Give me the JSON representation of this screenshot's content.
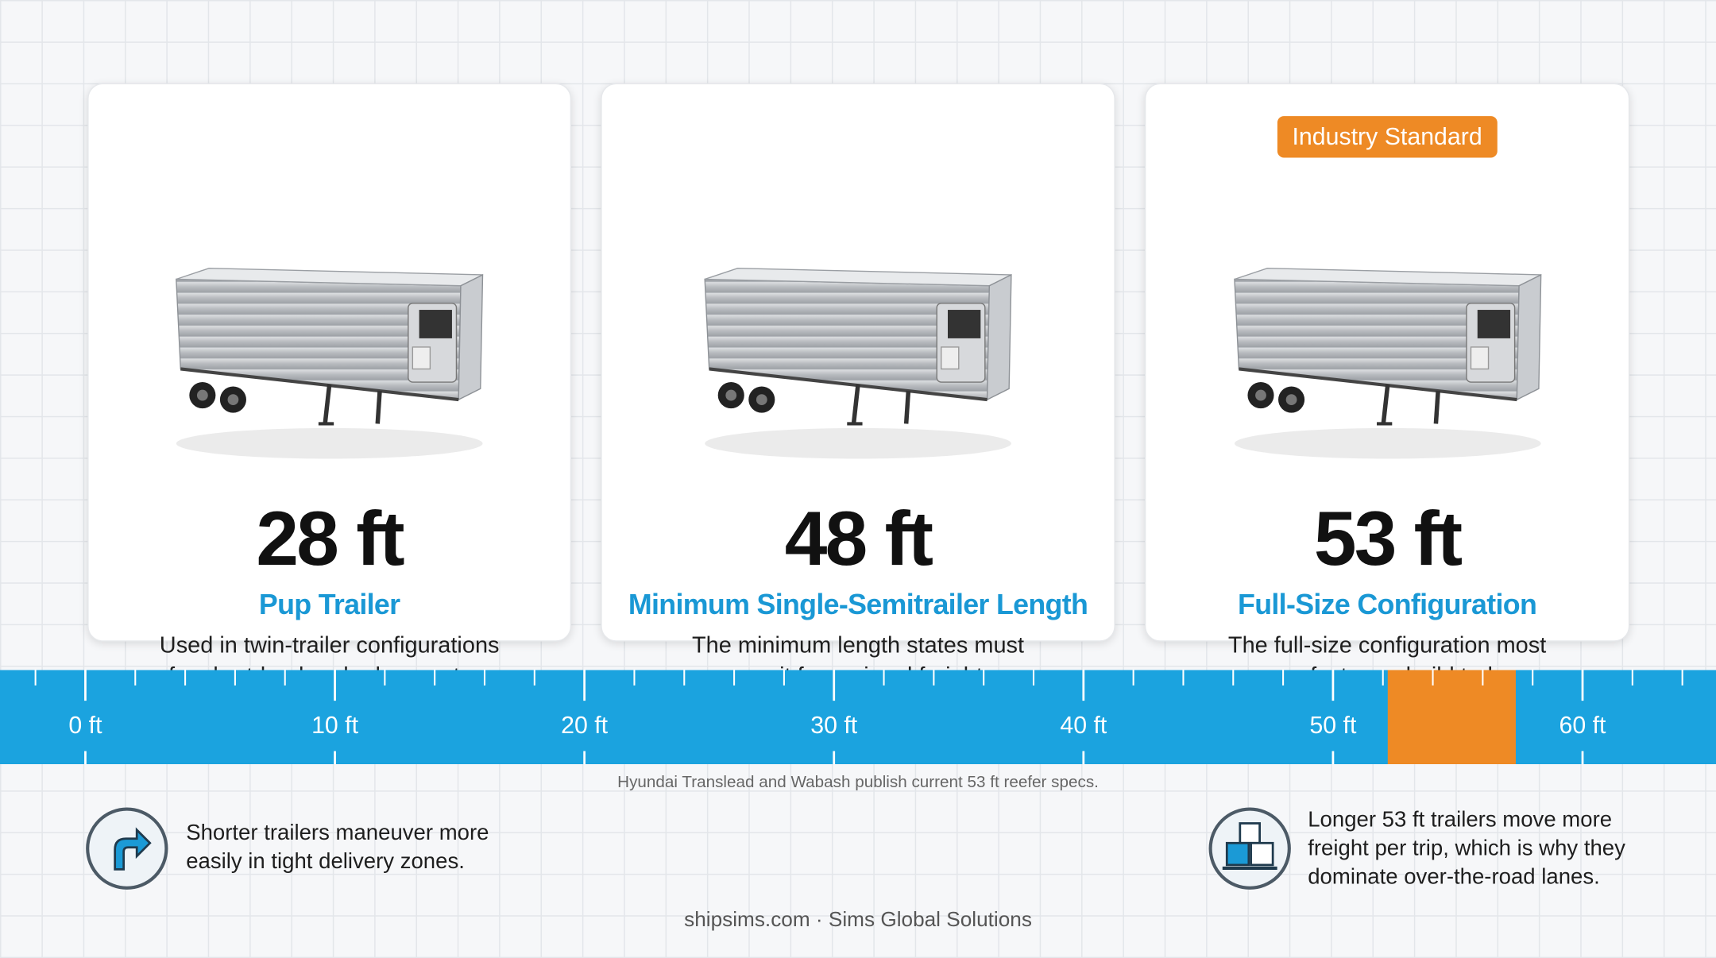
{
  "cards": [
    {
      "length": "28 ft",
      "title": "Pup Trailer",
      "description": [
        "Used in twin-trailer configurations",
        "for short-haul and urban routes."
      ]
    },
    {
      "length": "48 ft",
      "title": "Minimum Single-Semitrailer Length",
      "description": [
        "The minimum length states must",
        "permit for regional freight."
      ]
    },
    {
      "badge": "Industry Standard",
      "length": "53 ft",
      "title": "Full-Size Configuration",
      "description": [
        "The full-size configuration most",
        "manufacturers build today."
      ]
    }
  ],
  "ruler": {
    "ticks": [
      {
        "value": 0,
        "label": "0 ft"
      },
      {
        "value": 10,
        "label": "10 ft"
      },
      {
        "value": 20,
        "label": "20 ft"
      },
      {
        "value": 30,
        "label": "30 ft"
      },
      {
        "value": 40,
        "label": "40 ft"
      },
      {
        "value": 50,
        "label": "50 ft"
      },
      {
        "value": 60,
        "label": "60 ft"
      }
    ]
  },
  "source_note": "Hyundai Translead and Wabash publish current 53 ft reefer specs.",
  "notes": [
    {
      "lines": [
        "Shorter trailers maneuver more",
        "easily in tight delivery zones."
      ]
    },
    {
      "lines": [
        "Longer 53 ft trailers move more",
        "freight per trip, which is why they",
        "dominate over-the-road lanes."
      ]
    }
  ],
  "footer": "shipsims.com · Sims Global Solutions"
}
